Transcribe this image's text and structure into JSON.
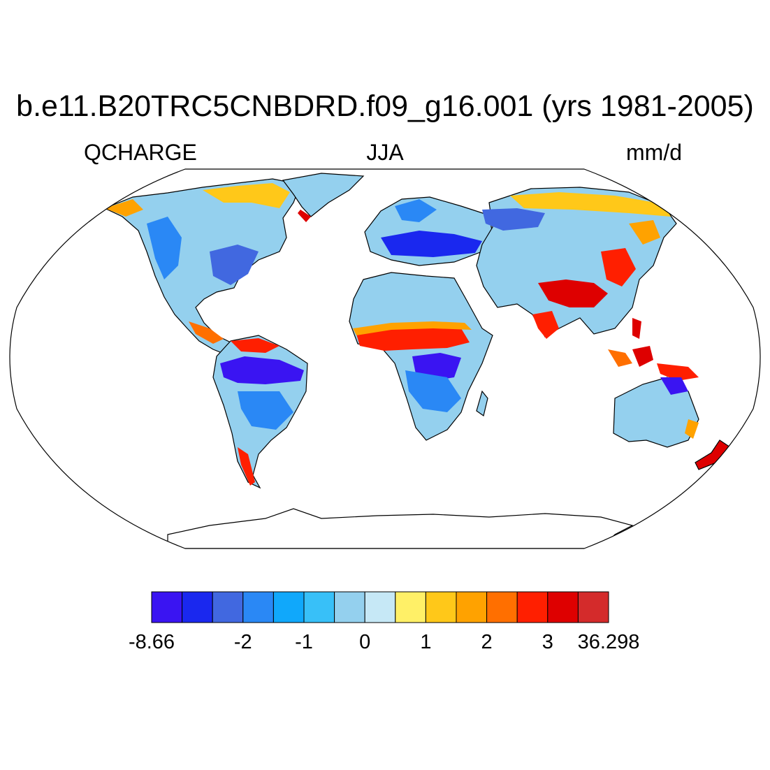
{
  "title": "b.e11.B20TRC5CNBDRD.f09_g16.001 (yrs 1981-2005)",
  "left_label": "QCHARGE",
  "center_label": "JJA",
  "right_label": "mm/d",
  "colorbar": {
    "colors": [
      "#3a14f2",
      "#1a28ef",
      "#4168e0",
      "#2a88f5",
      "#10a8fb",
      "#38c0f8",
      "#94d0ee",
      "#c6e8f6",
      "#fff067",
      "#ffc819",
      "#ffa200",
      "#ff6f00",
      "#ff1f00",
      "#de0000",
      "#d42b2b"
    ],
    "tick_labels": [
      "-8.66",
      "-2",
      "-1",
      "0",
      "1",
      "2",
      "3",
      "36.298"
    ],
    "tick_box_index": [
      0,
      3,
      5,
      7,
      9,
      11,
      13,
      15
    ]
  },
  "map": {
    "projection": "Robinson",
    "land_fill_default": "#94d0ee"
  }
}
